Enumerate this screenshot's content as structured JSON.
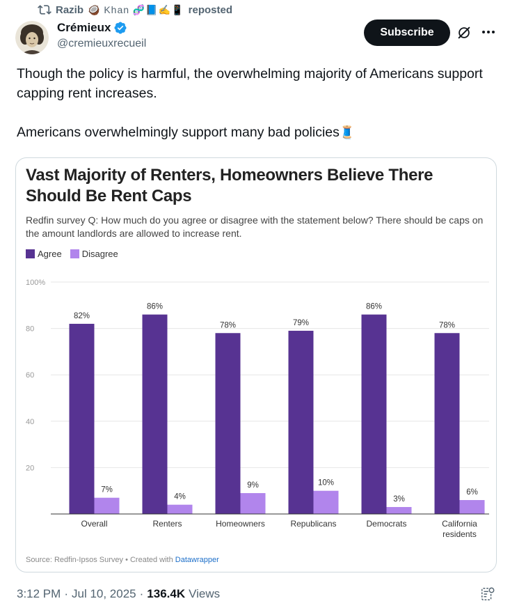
{
  "repost": {
    "reposter_name": "Razib",
    "reposter_emoji": "🥥 Khan 🧬📘✍️📱",
    "label": "reposted"
  },
  "author": {
    "display_name": "Crémieux",
    "handle": "@cremieuxrecueil",
    "verified_color": "#1d9bf0"
  },
  "actions": {
    "subscribe_label": "Subscribe"
  },
  "tweet": {
    "paragraph_1": "Though the policy is harmful, the overwhelming majority of Americans support capping rent increases.",
    "paragraph_2": "Americans overwhelmingly support many bad policies",
    "paragraph_2_emoji": "🧵"
  },
  "chart_card": {
    "title": "Vast Majority of Renters, Homeowners Believe There Should Be Rent Caps",
    "subtitle": "Redfin survey Q: How much do you agree or disagree with the statement below? There should be caps on the amount landlords are allowed to increase rent.",
    "source_prefix": "Source: Redfin-Ipsos Survey • Created with ",
    "source_link": "Datawrapper"
  },
  "chart_data": {
    "type": "bar",
    "categories": [
      "Overall",
      "Renters",
      "Homeowners",
      "Republicans",
      "Democrats",
      "California residents"
    ],
    "series": [
      {
        "name": "Agree",
        "values": [
          82,
          86,
          78,
          79,
          86,
          78
        ],
        "color": "#573392"
      },
      {
        "name": "Disagree",
        "values": [
          7,
          4,
          9,
          10,
          3,
          6
        ],
        "color": "#b185ec"
      }
    ],
    "value_labels": {
      "Agree": [
        "82%",
        "86%",
        "78%",
        "79%",
        "86%",
        "78%"
      ],
      "Disagree": [
        "7%",
        "4%",
        "9%",
        "10%",
        "3%",
        "6%"
      ]
    },
    "yticks": [
      "100%",
      "80",
      "60",
      "40",
      "20"
    ],
    "ytick_values": [
      100,
      80,
      60,
      40,
      20
    ],
    "ylim": [
      0,
      100
    ],
    "grid": true,
    "legend_position": "top-left"
  },
  "meta": {
    "time": "3:12 PM",
    "date": "Jul 10, 2025",
    "views_count": "136.4K",
    "views_label": "Views"
  }
}
